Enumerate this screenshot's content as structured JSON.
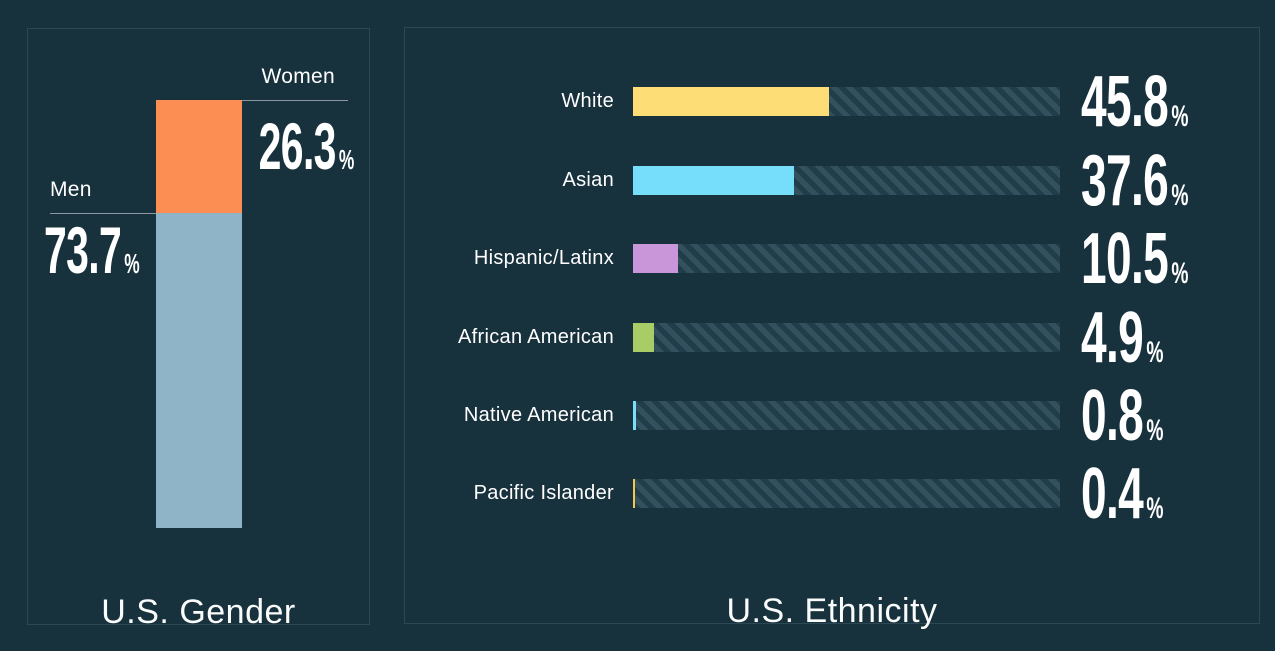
{
  "theme": {
    "background": "#17313d",
    "panel_border": "#2c4854",
    "track_stripe_dark": "#213d4a",
    "track_stripe_light": "#32505d",
    "callout_line": "#8a98a2",
    "text": "#ffffff",
    "title_text": "#fafbfb"
  },
  "chart_data": [
    {
      "type": "bar",
      "orientation": "vertical-stacked",
      "title": "U.S. Gender",
      "categories": [
        "Women",
        "Men"
      ],
      "values": [
        26.3,
        73.7
      ],
      "unit": "%",
      "colors": [
        "#fd8e53",
        "#8fb4c8"
      ],
      "total": 100,
      "value_label_style": "large-bold-condensed",
      "legend": "none",
      "grid": false
    },
    {
      "type": "bar",
      "orientation": "horizontal",
      "title": "U.S. Ethnicity",
      "categories": [
        "White",
        "Asian",
        "Hispanic/Latinx",
        "African American",
        "Native American",
        "Pacific Islander"
      ],
      "values": [
        45.8,
        37.6,
        10.5,
        4.9,
        0.8,
        0.4
      ],
      "unit": "%",
      "colors": [
        "#fcdd76",
        "#76ddfb",
        "#ca96da",
        "#a8cc66",
        "#7bdefb",
        "#f0c94f"
      ],
      "xlim": [
        0,
        100
      ],
      "track_style": "diagonal-hatch",
      "value_label_position": "right",
      "legend": "none",
      "grid": false
    }
  ]
}
